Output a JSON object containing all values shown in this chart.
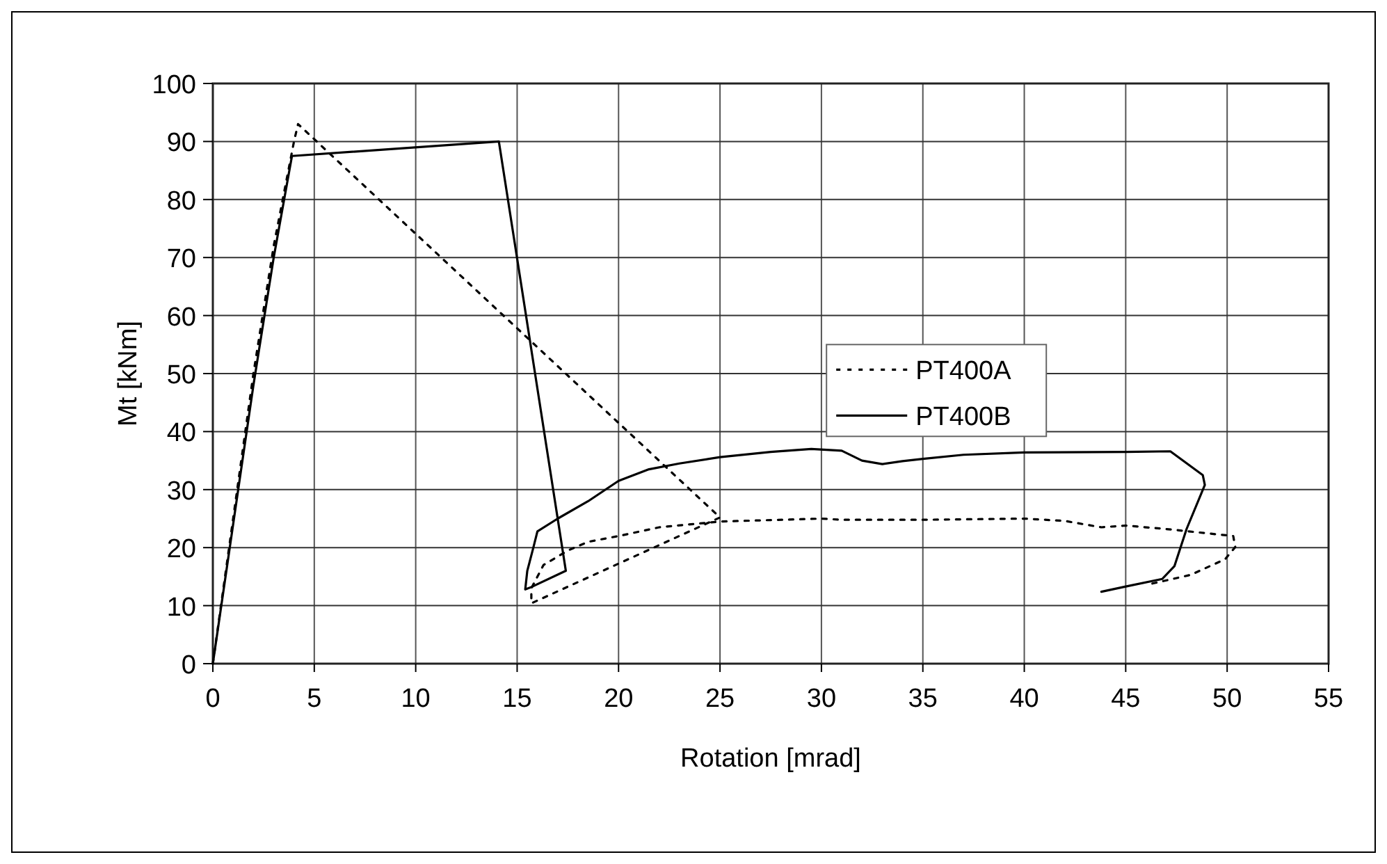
{
  "chart_data": {
    "type": "line",
    "xlabel": "Rotation [mrad]",
    "ylabel": "Mt [kNm]",
    "xlim": [
      0,
      55
    ],
    "ylim": [
      0,
      100
    ],
    "xticks": [
      0,
      5,
      10,
      15,
      20,
      25,
      30,
      35,
      40,
      45,
      50,
      55
    ],
    "yticks": [
      0,
      10,
      20,
      30,
      40,
      50,
      60,
      70,
      80,
      90,
      100
    ],
    "grid": true,
    "legend": "right",
    "marker": "none",
    "series": [
      {
        "name": "PT400A",
        "color": "#000000",
        "line_style": "dotted",
        "x": [
          0,
          1,
          2,
          3,
          4,
          4.2,
          25,
          15.7,
          15.7,
          16.3,
          17.5,
          18.5,
          20,
          22,
          25,
          30,
          31,
          35,
          40,
          42,
          43.8,
          45,
          47,
          50.3,
          50.4,
          49.9,
          48.2,
          46.3
        ],
        "values": [
          0,
          25,
          50,
          72,
          90,
          93,
          25.2,
          10.4,
          13,
          17,
          19.5,
          21,
          22,
          23.5,
          24.5,
          25,
          24.8,
          24.8,
          25,
          24.6,
          23.5,
          23.8,
          23.2,
          22,
          20.1,
          18,
          15.3,
          13.8
        ]
      },
      {
        "name": "PT400B",
        "color": "#000000",
        "line_style": "solid",
        "x": [
          0,
          1,
          2,
          3,
          3.9,
          14.1,
          17.4,
          15.7,
          15.4,
          15.5,
          15.8,
          16,
          17,
          18.5,
          20,
          21.5,
          23,
          25,
          27.5,
          29.5,
          31,
          32,
          33,
          34,
          35,
          37,
          40,
          45,
          47.2,
          48.8,
          48.9,
          48,
          47.4,
          46.8,
          45,
          43.8
        ],
        "values": [
          0,
          24,
          48,
          70,
          87.5,
          90,
          16,
          13.2,
          12.8,
          16,
          20,
          22.8,
          25,
          28,
          31.5,
          33.5,
          34.5,
          35.6,
          36.5,
          37,
          36.7,
          35,
          34.4,
          34.9,
          35.3,
          36,
          36.4,
          36.5,
          36.6,
          32.5,
          30.8,
          23.2,
          16.8,
          14.6,
          13.3,
          12.4
        ]
      }
    ]
  }
}
